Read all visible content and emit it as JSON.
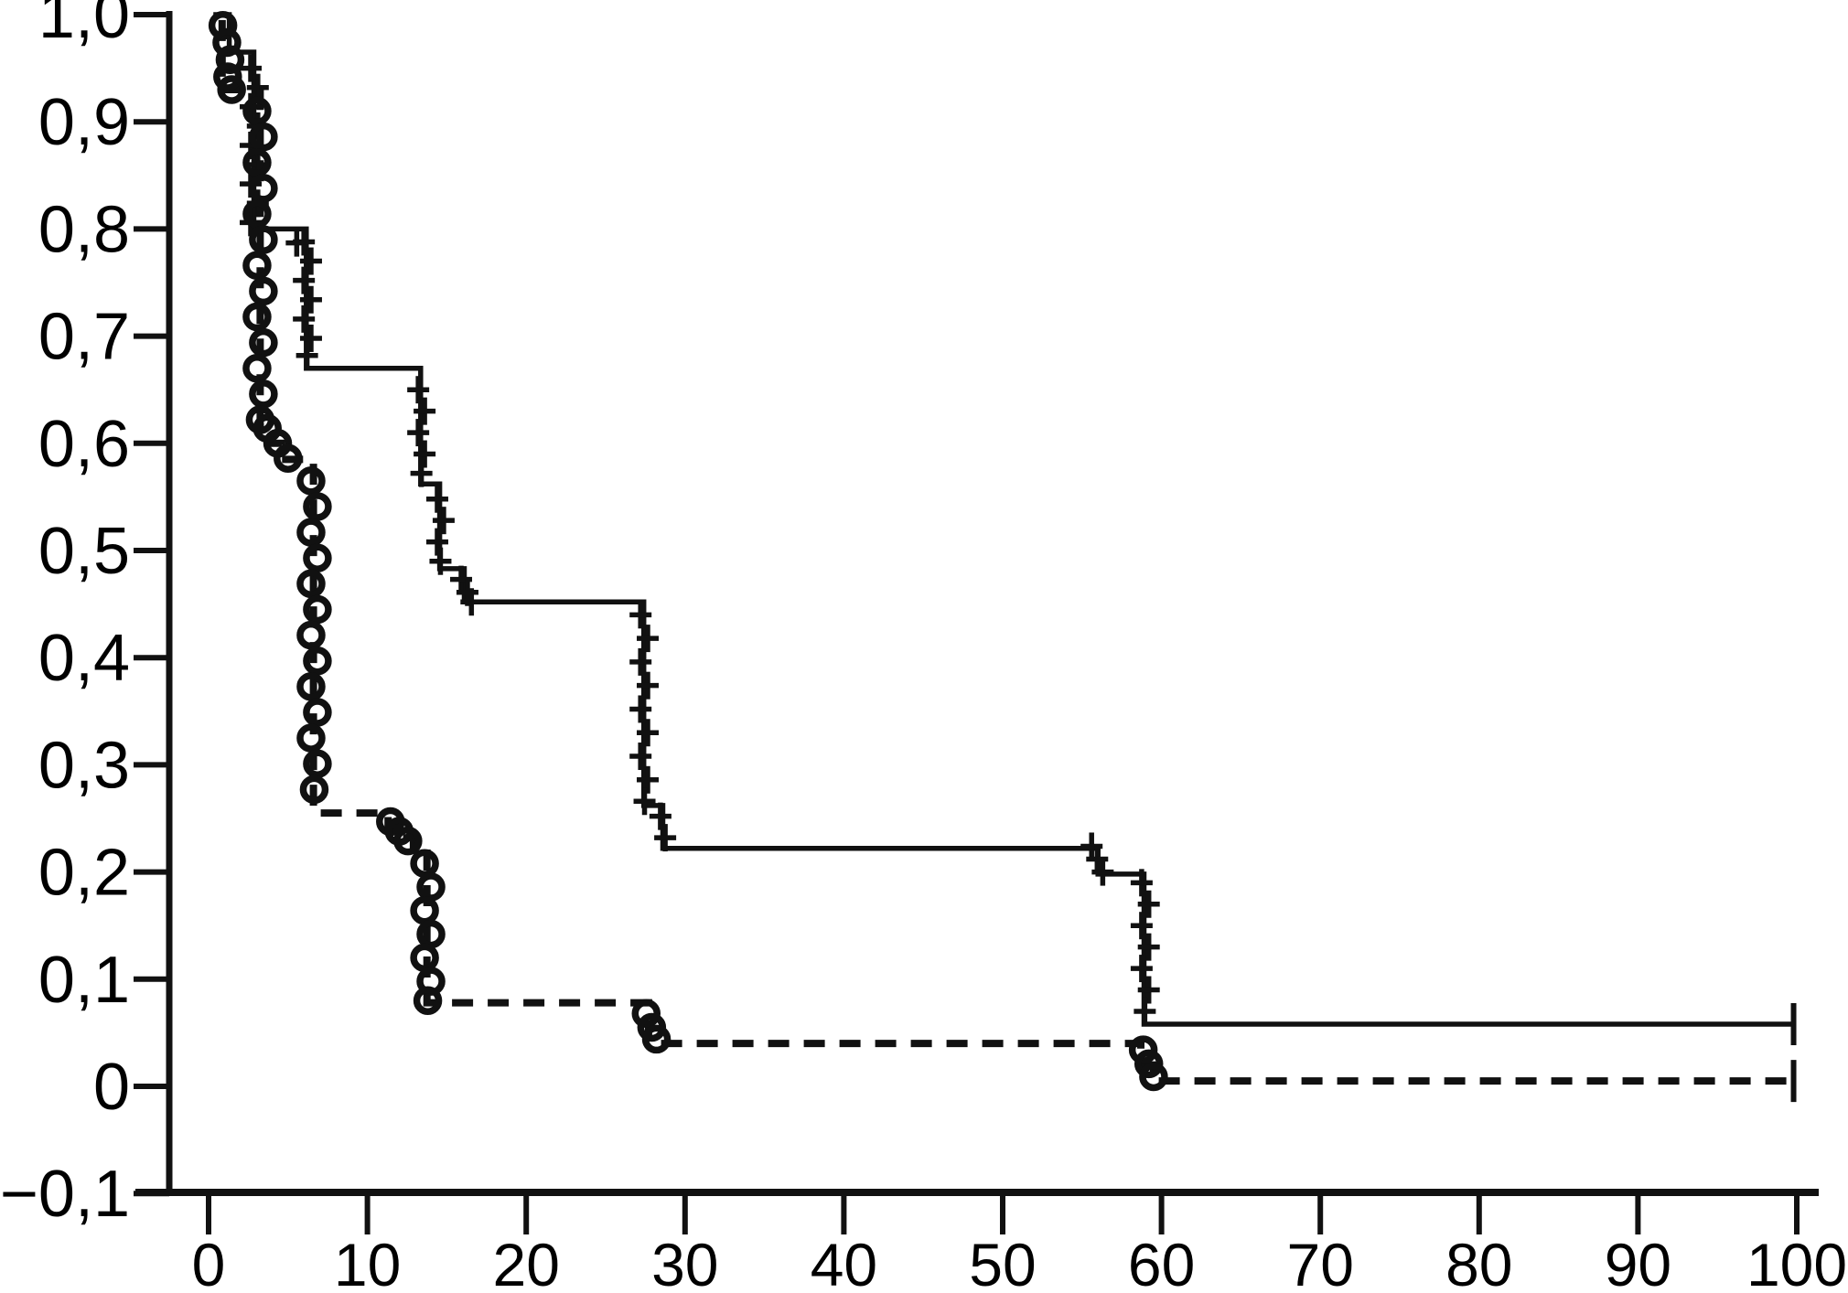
{
  "figure": {
    "kind": "kaplan-meier-survival-plot",
    "background_color": "#ffffff",
    "ink_color": "#111111",
    "title": "",
    "legend": null
  },
  "chart_data": {
    "type": "line",
    "subtype": "kaplan-meier-step",
    "title": "",
    "xlabel": "",
    "ylabel": "",
    "grid": false,
    "x_axis": {
      "range": [
        0,
        100
      ],
      "tick_values": [
        0,
        10,
        20,
        30,
        40,
        50,
        60,
        70,
        80,
        90,
        100
      ],
      "tick_labels": [
        "0",
        "10",
        "20",
        "30",
        "40",
        "50",
        "60",
        "70",
        "80",
        "90",
        "100"
      ]
    },
    "y_axis": {
      "range": [
        -0.1,
        1.0
      ],
      "tick_values": [
        1.0,
        0.9,
        0.8,
        0.7,
        0.6,
        0.5,
        0.4,
        0.3,
        0.2,
        0.1,
        0.0,
        -0.1
      ],
      "tick_labels": [
        "1,0",
        "0,9",
        "0,8",
        "0,7",
        "0,6",
        "0,5",
        "0,4",
        "0,3",
        "0,2",
        "0,1",
        "0",
        "−0,1"
      ]
    },
    "series": [
      {
        "name": "group-1-solid",
        "line_style": "solid",
        "marker": "plus",
        "steps": [
          [
            0.3,
            1.0
          ],
          [
            1.3,
            1.0
          ],
          [
            1.3,
            0.965
          ],
          [
            2.85,
            0.965
          ],
          [
            2.85,
            0.8
          ],
          [
            6.15,
            0.8
          ],
          [
            6.15,
            0.67
          ],
          [
            13.35,
            0.67
          ],
          [
            13.35,
            0.562
          ],
          [
            14.55,
            0.562
          ],
          [
            14.55,
            0.483
          ],
          [
            16.1,
            0.483
          ],
          [
            16.1,
            0.452
          ],
          [
            27.4,
            0.452
          ],
          [
            27.4,
            0.262
          ],
          [
            28.6,
            0.262
          ],
          [
            28.6,
            0.222
          ],
          [
            56.0,
            0.222
          ],
          [
            56.0,
            0.198
          ],
          [
            58.9,
            0.198
          ],
          [
            58.9,
            0.058
          ],
          [
            99.8,
            0.058
          ]
        ],
        "censors": [
          [
            2.65,
            0.95
          ],
          [
            3.1,
            0.932
          ],
          [
            2.65,
            0.914
          ],
          [
            3.1,
            0.896
          ],
          [
            2.65,
            0.878
          ],
          [
            3.1,
            0.86
          ],
          [
            2.65,
            0.842
          ],
          [
            3.1,
            0.824
          ],
          [
            2.65,
            0.806
          ],
          [
            5.55,
            0.787
          ],
          [
            6.0,
            0.788
          ],
          [
            6.45,
            0.77
          ],
          [
            6.0,
            0.752
          ],
          [
            6.45,
            0.734
          ],
          [
            6.0,
            0.716
          ],
          [
            6.45,
            0.698
          ],
          [
            6.2,
            0.682
          ],
          [
            13.2,
            0.65
          ],
          [
            13.6,
            0.63
          ],
          [
            13.2,
            0.61
          ],
          [
            13.6,
            0.59
          ],
          [
            13.4,
            0.572
          ],
          [
            14.4,
            0.548
          ],
          [
            14.8,
            0.528
          ],
          [
            14.4,
            0.508
          ],
          [
            14.6,
            0.49
          ],
          [
            15.9,
            0.473
          ],
          [
            16.3,
            0.461
          ],
          [
            16.55,
            0.452
          ],
          [
            27.2,
            0.44
          ],
          [
            27.65,
            0.418
          ],
          [
            27.2,
            0.396
          ],
          [
            27.65,
            0.374
          ],
          [
            27.2,
            0.352
          ],
          [
            27.65,
            0.33
          ],
          [
            27.2,
            0.308
          ],
          [
            27.65,
            0.286
          ],
          [
            27.45,
            0.266
          ],
          [
            28.45,
            0.252
          ],
          [
            28.75,
            0.232
          ],
          [
            55.6,
            0.224
          ],
          [
            55.95,
            0.212
          ],
          [
            56.3,
            0.2
          ],
          [
            58.75,
            0.19
          ],
          [
            59.2,
            0.17
          ],
          [
            58.75,
            0.15
          ],
          [
            59.2,
            0.13
          ],
          [
            58.75,
            0.11
          ],
          [
            59.2,
            0.09
          ],
          [
            58.95,
            0.07
          ]
        ],
        "end_tick": [
          99.8,
          0.058
        ]
      },
      {
        "name": "group-2-dashed",
        "line_style": "dashed",
        "marker": "circle",
        "steps": [
          [
            0.85,
            0.995
          ],
          [
            0.85,
            0.93
          ],
          [
            3.25,
            0.93
          ],
          [
            3.25,
            0.615
          ],
          [
            3.9,
            0.615
          ],
          [
            3.9,
            0.6
          ],
          [
            4.6,
            0.6
          ],
          [
            4.6,
            0.585
          ],
          [
            6.6,
            0.585
          ],
          [
            6.6,
            0.255
          ],
          [
            11.3,
            0.255
          ],
          [
            11.3,
            0.243
          ],
          [
            12.1,
            0.243
          ],
          [
            12.1,
            0.232
          ],
          [
            12.9,
            0.232
          ],
          [
            12.9,
            0.225
          ],
          [
            13.75,
            0.225
          ],
          [
            13.75,
            0.078
          ],
          [
            27.7,
            0.078
          ],
          [
            27.7,
            0.04
          ],
          [
            58.7,
            0.04
          ],
          [
            58.7,
            0.02
          ],
          [
            59.5,
            0.02
          ],
          [
            59.5,
            0.005
          ],
          [
            99.8,
            0.005
          ]
        ],
        "censors": [
          [
            0.9,
            0.99
          ],
          [
            1.15,
            0.974
          ],
          [
            1.35,
            0.958
          ],
          [
            1.2,
            0.942
          ],
          [
            1.45,
            0.93
          ],
          [
            3.05,
            0.91
          ],
          [
            3.45,
            0.886
          ],
          [
            3.05,
            0.862
          ],
          [
            3.45,
            0.838
          ],
          [
            3.05,
            0.814
          ],
          [
            3.45,
            0.79
          ],
          [
            3.05,
            0.766
          ],
          [
            3.45,
            0.742
          ],
          [
            3.05,
            0.718
          ],
          [
            3.45,
            0.694
          ],
          [
            3.05,
            0.67
          ],
          [
            3.45,
            0.646
          ],
          [
            3.25,
            0.622
          ],
          [
            3.7,
            0.614
          ],
          [
            4.35,
            0.6
          ],
          [
            5.0,
            0.586
          ],
          [
            6.45,
            0.565
          ],
          [
            6.85,
            0.541
          ],
          [
            6.45,
            0.517
          ],
          [
            6.85,
            0.493
          ],
          [
            6.45,
            0.469
          ],
          [
            6.85,
            0.445
          ],
          [
            6.45,
            0.421
          ],
          [
            6.85,
            0.397
          ],
          [
            6.45,
            0.373
          ],
          [
            6.85,
            0.349
          ],
          [
            6.45,
            0.325
          ],
          [
            6.85,
            0.301
          ],
          [
            6.65,
            0.277
          ],
          [
            11.45,
            0.247
          ],
          [
            12.0,
            0.238
          ],
          [
            12.55,
            0.229
          ],
          [
            13.6,
            0.208
          ],
          [
            14.0,
            0.186
          ],
          [
            13.6,
            0.164
          ],
          [
            14.0,
            0.142
          ],
          [
            13.6,
            0.12
          ],
          [
            14.0,
            0.098
          ],
          [
            13.8,
            0.08
          ],
          [
            27.55,
            0.068
          ],
          [
            27.9,
            0.055
          ],
          [
            28.2,
            0.044
          ],
          [
            58.85,
            0.034
          ],
          [
            59.2,
            0.021
          ],
          [
            59.5,
            0.009
          ]
        ],
        "end_tick": [
          99.8,
          0.005
        ]
      }
    ]
  }
}
